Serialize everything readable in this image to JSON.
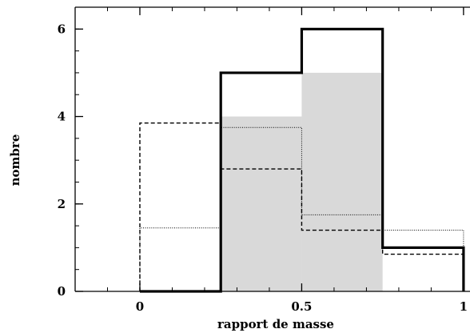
{
  "chart_data": {
    "type": "histogram",
    "xlabel": "rapport de masse",
    "ylabel": "nombre",
    "xlim": [
      -0.2,
      1.02
    ],
    "ylim": [
      0,
      6.5
    ],
    "x_ticks": [
      {
        "value": 0,
        "label": "0"
      },
      {
        "value": 0.5,
        "label": "0.5"
      },
      {
        "value": 1,
        "label": "1"
      }
    ],
    "y_ticks": [
      {
        "value": 0,
        "label": "0"
      },
      {
        "value": 2,
        "label": "2"
      },
      {
        "value": 4,
        "label": "4"
      },
      {
        "value": 6,
        "label": "6"
      }
    ],
    "x_minor_step": 0.1,
    "y_minor_step": 0.5,
    "grid": false,
    "series": [
      {
        "style": "filled-gray",
        "color": "#d9d9d9",
        "bins": [
          {
            "x0": 0.25,
            "x1": 0.5,
            "value": 4
          },
          {
            "x0": 0.5,
            "x1": 0.75,
            "value": 5
          }
        ]
      },
      {
        "style": "solid-thick",
        "color": "#000000",
        "bins": [
          {
            "x0": 0.0,
            "x1": 0.25,
            "value": 0
          },
          {
            "x0": 0.25,
            "x1": 0.5,
            "value": 5
          },
          {
            "x0": 0.5,
            "x1": 0.75,
            "value": 6
          },
          {
            "x0": 0.75,
            "x1": 1.0,
            "value": 1
          }
        ]
      },
      {
        "style": "dashed",
        "color": "#000000",
        "bins": [
          {
            "x0": 0.0,
            "x1": 0.25,
            "value": 3.85
          },
          {
            "x0": 0.25,
            "x1": 0.5,
            "value": 2.8
          },
          {
            "x0": 0.5,
            "x1": 0.75,
            "value": 1.4
          },
          {
            "x0": 0.75,
            "x1": 1.0,
            "value": 0.85
          }
        ]
      },
      {
        "style": "dotted",
        "color": "#000000",
        "bins": [
          {
            "x0": 0.0,
            "x1": 0.25,
            "value": 1.45
          },
          {
            "x0": 0.25,
            "x1": 0.5,
            "value": 3.75
          },
          {
            "x0": 0.5,
            "x1": 0.75,
            "value": 1.75
          },
          {
            "x0": 0.75,
            "x1": 1.0,
            "value": 1.4
          }
        ]
      }
    ]
  }
}
